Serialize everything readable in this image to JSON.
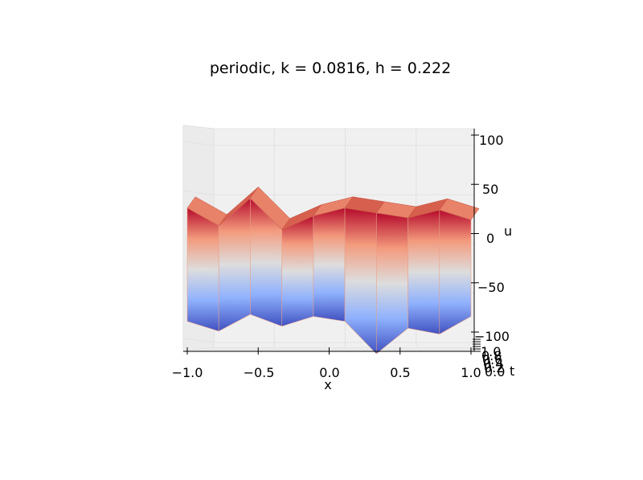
{
  "chart_data": {
    "type": "surface3d",
    "title": "periodic, k = 0.0816, h = 0.222",
    "xlabel": "x",
    "ylabel": "t",
    "zlabel": "u",
    "x_ticks": [
      "−1.0",
      "−0.5",
      "0.0",
      "0.5",
      "1.0"
    ],
    "z_ticks": [
      "100",
      "50",
      "0",
      "−50",
      "−100"
    ],
    "t_ticks": [
      "0.0",
      "0.2",
      "0.4",
      "0.6",
      "0.8",
      "1.0"
    ],
    "xlim": [
      -1.0,
      1.0
    ],
    "zlim": [
      -100,
      100
    ],
    "tlim": [
      0.0,
      1.0
    ],
    "colormap": "coolwarm",
    "grid": true,
    "x": [
      -1.0,
      -0.778,
      -0.556,
      -0.333,
      -0.111,
      0.111,
      0.333,
      0.556,
      0.778,
      1.0
    ],
    "surface_ridge_u": [
      30,
      12,
      40,
      8,
      22,
      30,
      25,
      20,
      28,
      18
    ],
    "surface_trough_u": [
      -85,
      -95,
      -78,
      -90,
      -80,
      -85,
      -118,
      -92,
      -98,
      -80
    ]
  }
}
